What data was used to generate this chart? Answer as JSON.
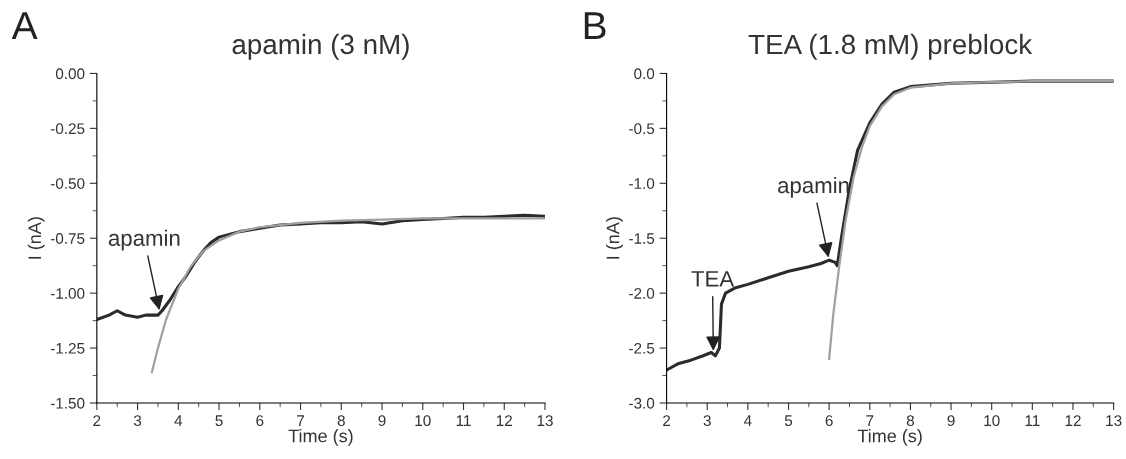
{
  "chart_data": [
    {
      "type": "line",
      "title": "apamin (3 nM)",
      "xlabel": "Time (s)",
      "ylabel": "I (nA)",
      "xlim": [
        2,
        13
      ],
      "xticks": [
        2,
        3,
        4,
        5,
        6,
        7,
        8,
        9,
        10,
        11,
        12,
        13
      ],
      "ylim": [
        -1.5,
        0
      ],
      "yticks": [
        {
          "value": -1.5,
          "label": "-1.50"
        },
        {
          "value": -1.25,
          "label": "-1.25"
        },
        {
          "value": -1.0,
          "label": "-1.00"
        },
        {
          "value": -0.75,
          "label": "-0.75"
        },
        {
          "value": -0.5,
          "label": "-0.50"
        },
        {
          "value": -0.25,
          "label": "-0.25"
        },
        {
          "value": 0,
          "label": "0.00"
        }
      ],
      "grid": false,
      "legend": false,
      "marker": "none",
      "line_style": "solid",
      "annotations": [
        "A",
        {
          "text": "apamin",
          "x": 3.55,
          "y": -1.09
        }
      ],
      "series": [
        {
          "color": "#2b2b2b",
          "x": [
            2.0,
            2.3,
            2.5,
            2.7,
            3.0,
            3.2,
            3.5,
            3.6,
            3.8,
            4.0,
            4.2,
            4.4,
            4.6,
            4.8,
            5.0,
            5.5,
            6.0,
            6.5,
            7.0,
            7.5,
            8.0,
            8.5,
            9.0,
            9.5,
            10.0,
            10.5,
            11.0,
            11.5,
            12.0,
            12.5,
            13.0
          ],
          "values": [
            -1.12,
            -1.1,
            -1.08,
            -1.1,
            -1.11,
            -1.1,
            -1.1,
            -1.08,
            -1.03,
            -0.97,
            -0.92,
            -0.86,
            -0.81,
            -0.77,
            -0.745,
            -0.72,
            -0.705,
            -0.69,
            -0.685,
            -0.68,
            -0.68,
            -0.675,
            -0.685,
            -0.67,
            -0.665,
            -0.66,
            -0.655,
            -0.655,
            -0.65,
            -0.645,
            -0.65
          ]
        },
        {
          "color": "#a0a0a0",
          "x": [
            3.35,
            3.5,
            3.7,
            4.0,
            4.3,
            4.6,
            5.0,
            5.5,
            6.0,
            7.0,
            8.0,
            9.0,
            10.0,
            11.0,
            12.0,
            13.0
          ],
          "values": [
            -1.36,
            -1.25,
            -1.12,
            -0.98,
            -0.88,
            -0.81,
            -0.76,
            -0.72,
            -0.7,
            -0.68,
            -0.67,
            -0.665,
            -0.66,
            -0.66,
            -0.66,
            -0.66
          ]
        }
      ]
    },
    {
      "type": "line",
      "title": "TEA (1.8 mM) preblock",
      "xlabel": "Time (s)",
      "ylabel": "I (nA)",
      "xlim": [
        2,
        13
      ],
      "xticks": [
        2,
        3,
        4,
        5,
        6,
        7,
        8,
        9,
        10,
        11,
        12,
        13
      ],
      "ylim": [
        -3,
        0
      ],
      "yticks": [
        {
          "value": -3,
          "label": "-3.0"
        },
        {
          "value": -2.5,
          "label": "-2.5"
        },
        {
          "value": -2,
          "label": "-2.0"
        },
        {
          "value": -1.5,
          "label": "-1.5"
        },
        {
          "value": -1,
          "label": "-1.0"
        },
        {
          "value": -0.5,
          "label": "-0.5"
        },
        {
          "value": 0,
          "label": "0.0"
        }
      ],
      "grid": false,
      "legend": false,
      "marker": "none",
      "line_style": "solid",
      "annotations": [
        "B",
        {
          "text": "TEA",
          "x": 3.15,
          "y": -2.55
        },
        {
          "text": "apamin",
          "x": 6.0,
          "y": -1.7
        }
      ],
      "series": [
        {
          "color": "#2b2b2b",
          "x": [
            2.0,
            2.3,
            2.6,
            2.9,
            3.1,
            3.2,
            3.3,
            3.35,
            3.45,
            3.7,
            4.0,
            4.5,
            5.0,
            5.5,
            5.8,
            6.0,
            6.15,
            6.2,
            6.3,
            6.5,
            6.7,
            7.0,
            7.3,
            7.6,
            8.0,
            9.0,
            10.0,
            11.0,
            12.0,
            13.0
          ],
          "values": [
            -2.7,
            -2.64,
            -2.61,
            -2.57,
            -2.54,
            -2.57,
            -2.5,
            -2.1,
            -2.0,
            -1.95,
            -1.92,
            -1.86,
            -1.8,
            -1.76,
            -1.73,
            -1.7,
            -1.72,
            -1.75,
            -1.5,
            -1.05,
            -0.7,
            -0.45,
            -0.28,
            -0.17,
            -0.12,
            -0.09,
            -0.08,
            -0.07,
            -0.07,
            -0.07
          ]
        },
        {
          "color": "#a0a0a0",
          "x": [
            6.0,
            6.1,
            6.25,
            6.4,
            6.6,
            6.8,
            7.0,
            7.3,
            7.6,
            8.0,
            9.0,
            10.0,
            11.0,
            12.0,
            13.0
          ],
          "values": [
            -2.6,
            -2.2,
            -1.75,
            -1.35,
            -0.95,
            -0.68,
            -0.48,
            -0.3,
            -0.19,
            -0.13,
            -0.09,
            -0.08,
            -0.07,
            -0.07,
            -0.07
          ]
        }
      ]
    }
  ]
}
